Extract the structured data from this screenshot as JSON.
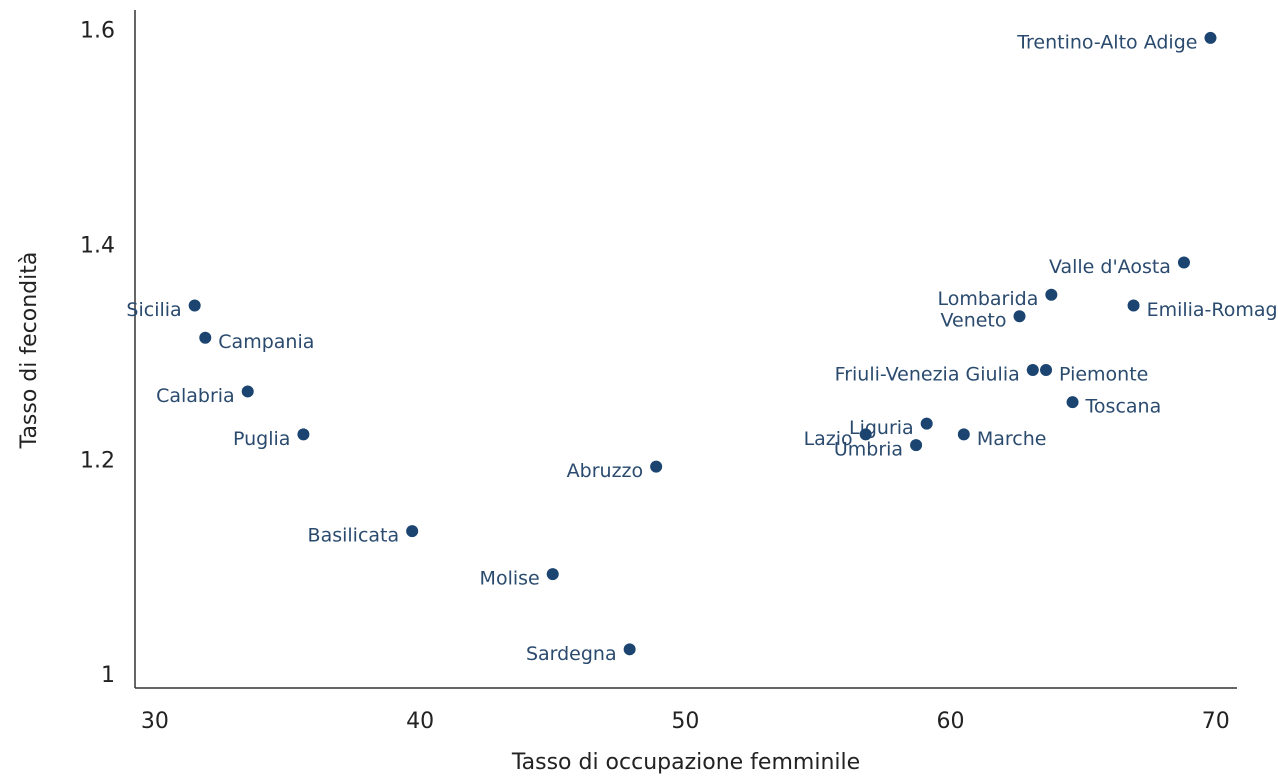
{
  "chart_data": {
    "type": "scatter",
    "x_label": "Tasso di occupazione femminile",
    "y_label": "Tasso di fecondità",
    "labels": [
      "Trentino-Alto Adige",
      "Valle d'Aosta",
      "Lombarida",
      "Emilia-Romagna",
      "Veneto",
      "Friuli-Venezia Giulia",
      "Piemonte",
      "Toscana",
      "Liguria",
      "Marche",
      "Lazio",
      "Umbria",
      "Abruzzo",
      "Sicilia",
      "Campania",
      "Calabria",
      "Puglia",
      "Basilicata",
      "Molise",
      "Sardegna"
    ],
    "x": [
      69.8,
      68.8,
      63.8,
      66.9,
      62.6,
      63.1,
      63.6,
      64.6,
      59.1,
      60.5,
      56.8,
      58.7,
      48.9,
      31.5,
      31.9,
      33.5,
      35.6,
      39.7,
      45.0,
      47.9
    ],
    "y": [
      1.594,
      1.385,
      1.355,
      1.345,
      1.335,
      1.285,
      1.285,
      1.255,
      1.235,
      1.225,
      1.225,
      1.215,
      1.195,
      1.345,
      1.315,
      1.265,
      1.225,
      1.135,
      1.095,
      1.025
    ],
    "color": "#1b4470",
    "xlim": [
      29.25,
      70.8
    ],
    "ylim": [
      0.989,
      1.62
    ],
    "xticks": [
      30,
      40,
      50,
      60,
      70
    ],
    "yticks": [
      1,
      1.2,
      1.4,
      1.6
    ]
  }
}
